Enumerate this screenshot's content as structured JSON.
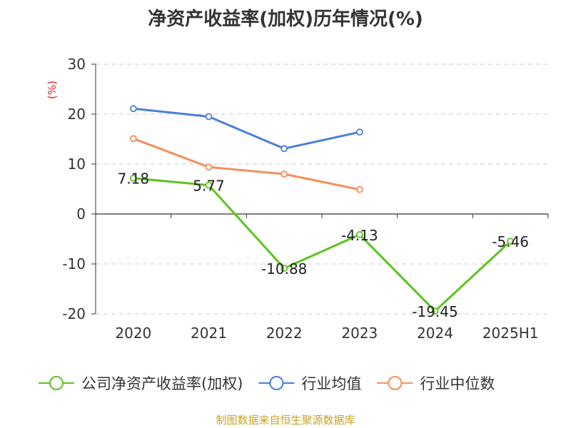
{
  "chart_data": {
    "type": "line",
    "title": "净资产收益率(加权)历年情况(%)",
    "ylabel": "(%)",
    "categories": [
      "2020",
      "2021",
      "2022",
      "2023",
      "2024",
      "2025H1"
    ],
    "yticks": [
      30,
      20,
      10,
      0,
      -10,
      -20
    ],
    "ylim": [
      -20,
      30
    ],
    "grid": true,
    "legend_position": "bottom",
    "series": [
      {
        "name": "公司净资产收益率(加权)",
        "color": "#5cc31f",
        "values": [
          7.18,
          5.77,
          -10.88,
          -4.13,
          -19.45,
          -5.46
        ],
        "labels": [
          "7.18",
          "5.77",
          "-10.88",
          "-4.13",
          "-19.45",
          "-5.46"
        ]
      },
      {
        "name": "行业均值",
        "color": "#4a7fd9",
        "values": [
          21.1,
          19.5,
          13.1,
          16.4,
          null,
          null
        ]
      },
      {
        "name": "行业中位数",
        "color": "#f58f5a",
        "values": [
          15.1,
          9.4,
          8.0,
          4.9,
          null,
          null
        ]
      }
    ]
  },
  "source": "制图数据来自恒生聚源数据库"
}
